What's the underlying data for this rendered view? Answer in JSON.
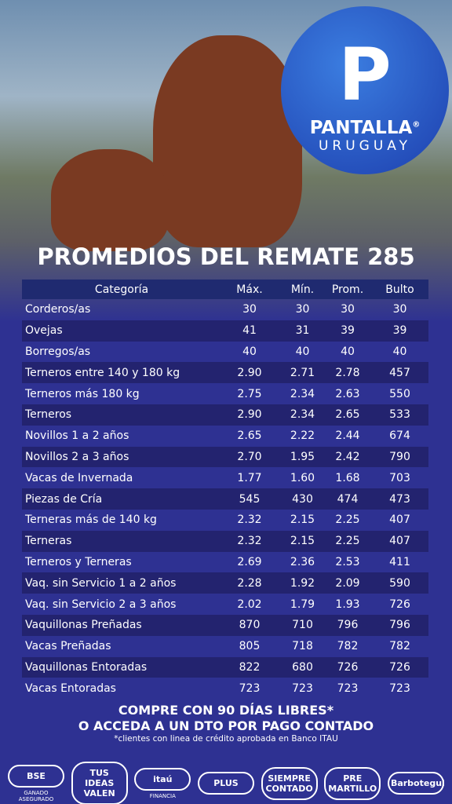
{
  "brand": {
    "name": "PANTALLA",
    "mark": "®",
    "sub": "URUGUAY"
  },
  "title": "PROMEDIOS DEL REMATE 285",
  "table": {
    "header": [
      "Categoría",
      "Máx.",
      "Mín.",
      "Prom.",
      "Bulto"
    ],
    "rows": [
      [
        "Corderos/as",
        "30",
        "30",
        "30",
        "30"
      ],
      [
        "Ovejas",
        "41",
        "31",
        "39",
        "39"
      ],
      [
        "Borregos/as",
        "40",
        "40",
        "40",
        "40"
      ],
      [
        "Terneros entre 140 y 180 kg",
        "2.90",
        "2.71",
        "2.78",
        "457"
      ],
      [
        "Terneros más 180 kg",
        "2.75",
        "2.34",
        "2.63",
        "550"
      ],
      [
        "Terneros",
        "2.90",
        "2.34",
        "2.65",
        "533"
      ],
      [
        "Novillos 1 a 2 años",
        "2.65",
        "2.22",
        "2.44",
        "674"
      ],
      [
        "Novillos 2 a 3 años",
        "2.70",
        "1.95",
        "2.42",
        "790"
      ],
      [
        "Vacas de Invernada",
        "1.77",
        "1.60",
        "1.68",
        "703"
      ],
      [
        "Piezas de Cría",
        "545",
        "430",
        "474",
        "473"
      ],
      [
        "Terneras más de 140 kg",
        "2.32",
        "2.15",
        "2.25",
        "407"
      ],
      [
        "Terneras",
        "2.32",
        "2.15",
        "2.25",
        "407"
      ],
      [
        "Terneros y Terneras",
        "2.69",
        "2.36",
        "2.53",
        "411"
      ],
      [
        "Vaq. sin Servicio 1 a 2 años",
        "2.28",
        "1.92",
        "2.09",
        "590"
      ],
      [
        "Vaq. sin Servicio 2 a 3 años",
        "2.02",
        "1.79",
        "1.93",
        "726"
      ],
      [
        "Vaquillonas Preñadas",
        "870",
        "710",
        "796",
        "796"
      ],
      [
        "Vacas Preñadas",
        "805",
        "718",
        "782",
        "782"
      ],
      [
        "Vaquillonas Entoradas",
        "822",
        "680",
        "726",
        "726"
      ],
      [
        "Vacas Entoradas",
        "723",
        "723",
        "723",
        "723"
      ]
    ]
  },
  "footer": {
    "line1": "COMPRE CON 90 DÍAS LIBRES*",
    "line2": "O ACCEDA A UN DTO POR PAGO CONTADO",
    "note": "*clientes con linea de crédito aprobada en Banco ITAU"
  },
  "sponsors": [
    {
      "logo": "BSE",
      "caption": "GANADO ASEGURADO"
    },
    {
      "logo": "TUS IDEAS VALEN",
      "caption": ""
    },
    {
      "logo": "itaú",
      "caption": "FINANCIA"
    },
    {
      "logo": "PLUS",
      "caption": ""
    },
    {
      "logo": "SIEMPRE CONTADO",
      "caption": ""
    },
    {
      "logo": "PRE MARTILLO",
      "caption": ""
    },
    {
      "logo": "Barbotegui",
      "caption": ""
    }
  ]
}
